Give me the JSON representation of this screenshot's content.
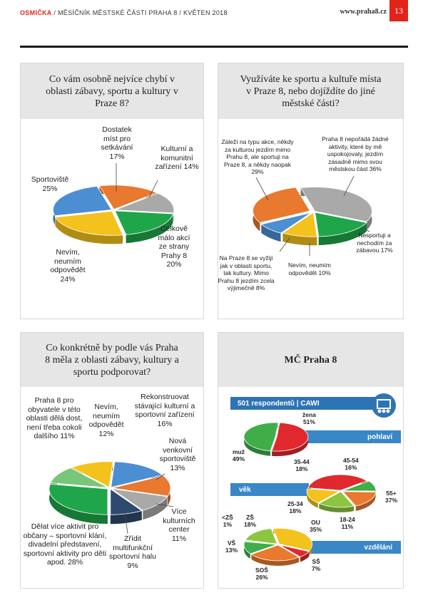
{
  "header": {
    "brand": "OSMIČKA",
    "subtitle": " / MĚSÍČNÍK MĚSTSKÉ ČÁSTI PRAHA 8 / KVĚTEN 2018",
    "url": "www.praha8.cz",
    "page_number": "13"
  },
  "panel1": {
    "title": "Co vám osobně nejvíce chybí v oblasti zábavy, sportu a kultury v Praze 8?",
    "labels": {
      "a": "Dostatek míst pro setkávání 17%",
      "b": "Kulturní a komunitní zařízení 14%",
      "c": "Celkově málo akcí ze strany Prahy 8 20%",
      "d": "Nevím, neumím odpovědět 24%",
      "e": "Sportoviště 25%"
    },
    "chart_data": {
      "type": "pie",
      "title": "Co vám osobně nejvíce chybí v oblasti zábavy, sportu a kultury v Praze 8?",
      "slices": [
        {
          "label": "Dostatek míst pro setkávání",
          "value": 17,
          "color": "#e8792e"
        },
        {
          "label": "Kulturní a komunitní zařízení",
          "value": 14,
          "color": "#a9a9a9"
        },
        {
          "label": "Celkově málo akcí ze strany Prahy 8",
          "value": 20,
          "color": "#1fa64a"
        },
        {
          "label": "Nevím, neumím odpovědět",
          "value": 24,
          "color": "#f4c21c"
        },
        {
          "label": "Sportoviště",
          "value": 25,
          "color": "#4b8fd2"
        }
      ]
    }
  },
  "panel2": {
    "title": "Využíváte ke sportu a kultuře místa v Praze 8, nebo dojíždíte do jiné městské části?",
    "labels": {
      "a": "Záleží na typu akce, někdy za kulturou jezdím mimo Prahu 8, ale sportuji na Praze 8, a někdy naopak 29%",
      "b": "Praha 8 nepořádá žádné aktivity, které by mě uspokojovaly, jezdím zásadně mimo svou městskou část 36%",
      "c": "Nesportuji a nechodím za zábavou 17%",
      "d": "Nevím, neumím odpovědět 10%",
      "e": "Na Praze 8 se vyžiji jak v oblasti sportu, tak kultury. Mimo Prahu 8 jezdím zcela výjimečně 8%"
    },
    "chart_data": {
      "type": "pie",
      "title": "Využíváte ke sportu a kultuře místa v Praze 8, nebo dojíždíte do jiné městské části?",
      "slices": [
        {
          "label": "Praha 8 nepořádá žádné aktivity, které by mě uspokojovaly, jezdím zásadně mimo svou městskou část",
          "value": 36,
          "color": "#a9a9a9"
        },
        {
          "label": "Nesportuji a nechodím za zábavou",
          "value": 17,
          "color": "#1fa64a"
        },
        {
          "label": "Nevím, neumím odpovědět",
          "value": 10,
          "color": "#f4c21c"
        },
        {
          "label": "Na Praze 8 se vyžiji jak v oblasti sportu, tak kultury. Mimo Prahu 8 jezdím zcela výjimečně",
          "value": 8,
          "color": "#4b8fd2"
        },
        {
          "label": "Záleží na typu akce, někdy za kulturou jezdím mimo Prahu 8, ale sportuji na Praze 8, a někdy naopak",
          "value": 29,
          "color": "#e8792e"
        }
      ]
    }
  },
  "panel3": {
    "title": "Co konkrétně by podle vás Praha 8 měla z oblasti zábavy, kultury a sportu podporovat?",
    "labels": {
      "a": "Rekonstruovat stávající kulturní a sportovní zařízení 16%",
      "b": "Nová venkovní sportoviště 13%",
      "c": "Více kulturních center 11%",
      "d": "Zřídit multifunkční sportovní halu 9%",
      "e": "Dělat více aktivit pro občany – sportovní klání, divadelní představení, sportovní aktivity pro děti apod. 28%",
      "f": "Praha 8 pro obyvatele v této oblasti dělá dost, není třeba cokoli dalšího 11%",
      "g": "Nevím, neumím odpovědět 12%"
    },
    "chart_data": {
      "type": "pie",
      "title": "Co konkrétně by podle vás Praha 8 měla z oblasti zábavy, kultury a sportu podporovat?",
      "slices": [
        {
          "label": "Rekonstruovat stávající kulturní a sportovní zařízení",
          "value": 16,
          "color": "#4b8fd2"
        },
        {
          "label": "Nová venkovní sportoviště",
          "value": 13,
          "color": "#e8792e"
        },
        {
          "label": "Více kulturních center",
          "value": 11,
          "color": "#a9a9a9"
        },
        {
          "label": "Zřídit multifunkční sportovní halu",
          "value": 9,
          "color": "#2f4a6e"
        },
        {
          "label": "Dělat více aktivit pro občany – sportovní klání, divadelní představení, sportovní aktivity pro děti apod.",
          "value": 28,
          "color": "#1fa64a"
        },
        {
          "label": "Praha 8 pro obyvatele v této oblasti dělá dost, není třeba cokoli dalšího",
          "value": 11,
          "color": "#78c679"
        },
        {
          "label": "Nevím, neumím odpovědět",
          "value": 12,
          "color": "#f4c21c"
        }
      ]
    }
  },
  "panel4": {
    "title": "MČ Praha 8",
    "respondents": "501 respondentů   |   CAWI",
    "bars": {
      "gender": "pohlaví",
      "age": "věk",
      "education": "vzdělání"
    },
    "labels": {
      "zena": "žena\n51%",
      "muz": "muž\n49%",
      "age_35_44": "35-44\n18%",
      "age_45_54": "45-54\n16%",
      "age_55": "55+\n37%",
      "age_25_34": "25-34\n18%",
      "age_18_24": "18-24\n11%",
      "edu_zs": "ZŠ\n18%",
      "edu_lt_zs": "<ZŠ\n1%",
      "edu_ou": "OU\n35%",
      "edu_vs": "VŠ\n13%",
      "edu_ss": "SŠ\n7%",
      "edu_sos": "SOŠ\n26%"
    },
    "chart_data": [
      {
        "type": "pie",
        "title": "pohlaví",
        "slices": [
          {
            "label": "žena",
            "value": 51,
            "color": "#e0292e"
          },
          {
            "label": "muž",
            "value": 49,
            "color": "#3fae49"
          }
        ]
      },
      {
        "type": "pie",
        "title": "věk",
        "slices": [
          {
            "label": "55+",
            "value": 37,
            "color": "#e0292e"
          },
          {
            "label": "18-24",
            "value": 11,
            "color": "#3fae49"
          },
          {
            "label": "25-34",
            "value": 18,
            "color": "#e8792e"
          },
          {
            "label": "35-44",
            "value": 18,
            "color": "#8cc63f"
          },
          {
            "label": "45-54",
            "value": 16,
            "color": "#f4c21c"
          }
        ]
      },
      {
        "type": "pie",
        "title": "vzdělání",
        "slices": [
          {
            "label": "OU",
            "value": 35,
            "color": "#f4c21c"
          },
          {
            "label": "SŠ",
            "value": 7,
            "color": "#e0292e"
          },
          {
            "label": "SOŠ",
            "value": 26,
            "color": "#e8792e"
          },
          {
            "label": "VŠ",
            "value": 13,
            "color": "#3fae49"
          },
          {
            "label": "<ZŠ",
            "value": 1,
            "color": "#a9a9a9"
          },
          {
            "label": "ZŠ",
            "value": 18,
            "color": "#8cc63f"
          }
        ]
      }
    ]
  }
}
